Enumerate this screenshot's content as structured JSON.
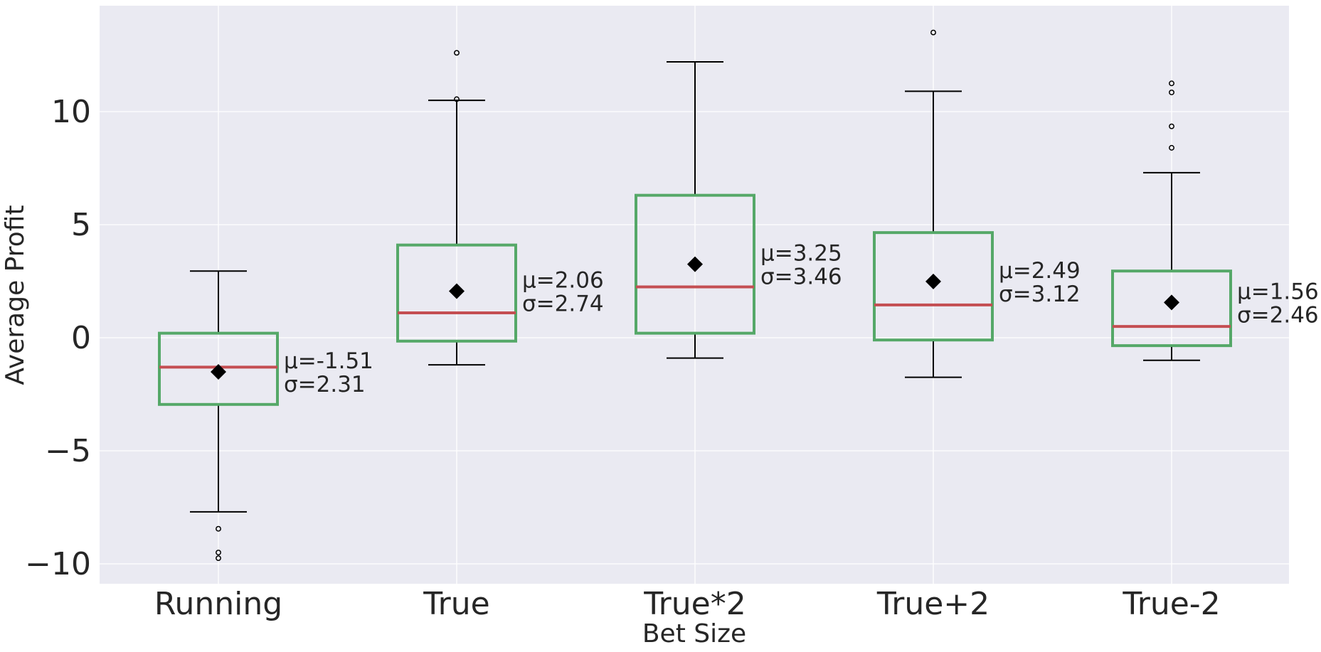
{
  "chart_data": {
    "type": "box",
    "title": "",
    "xlabel": "Bet Size",
    "ylabel": "Average Profit",
    "ylim": [
      -11.0,
      14.5
    ],
    "yticks": [
      -10,
      -5,
      0,
      5,
      10
    ],
    "ytick_labels": [
      "−10",
      "−5",
      "0",
      "5",
      "10"
    ],
    "grid": true,
    "colors": {
      "background": "#eaeaf2",
      "grid": "#ffffff",
      "box": "#55a868",
      "median": "#c44e52",
      "whisker": "#000000",
      "mean_marker": "#000000",
      "text": "#262626"
    },
    "categories": [
      "Running",
      "True",
      "True*2",
      "True+2",
      "True-2"
    ],
    "boxes": [
      {
        "category": "Running",
        "q1": -2.95,
        "median": -1.3,
        "q3": 0.2,
        "whisker_low": -7.7,
        "whisker_high": 2.95,
        "mean": -1.51,
        "outliers": [
          -8.45,
          -9.5,
          -9.75
        ],
        "annotation": [
          "μ=-1.51",
          "σ=2.31"
        ]
      },
      {
        "category": "True",
        "q1": -0.15,
        "median": 1.1,
        "q3": 4.1,
        "whisker_low": -1.2,
        "whisker_high": 10.5,
        "mean": 2.06,
        "outliers": [
          10.55,
          12.6
        ],
        "annotation": [
          "μ=2.06",
          "σ=2.74"
        ]
      },
      {
        "category": "True*2",
        "q1": 0.2,
        "median": 2.25,
        "q3": 6.3,
        "whisker_low": -0.9,
        "whisker_high": 12.2,
        "mean": 3.25,
        "outliers": [],
        "annotation": [
          "μ=3.25",
          "σ=3.46"
        ]
      },
      {
        "category": "True+2",
        "q1": -0.1,
        "median": 1.45,
        "q3": 4.65,
        "whisker_low": -1.75,
        "whisker_high": 10.9,
        "mean": 2.49,
        "outliers": [
          13.5
        ],
        "annotation": [
          "μ=2.49",
          "σ=3.12"
        ]
      },
      {
        "category": "True-2",
        "q1": -0.35,
        "median": 0.5,
        "q3": 2.95,
        "whisker_low": -1.0,
        "whisker_high": 7.3,
        "mean": 1.56,
        "outliers": [
          8.4,
          9.35,
          10.85,
          11.25
        ],
        "annotation": [
          "μ=1.56",
          "σ=2.46"
        ]
      }
    ]
  }
}
